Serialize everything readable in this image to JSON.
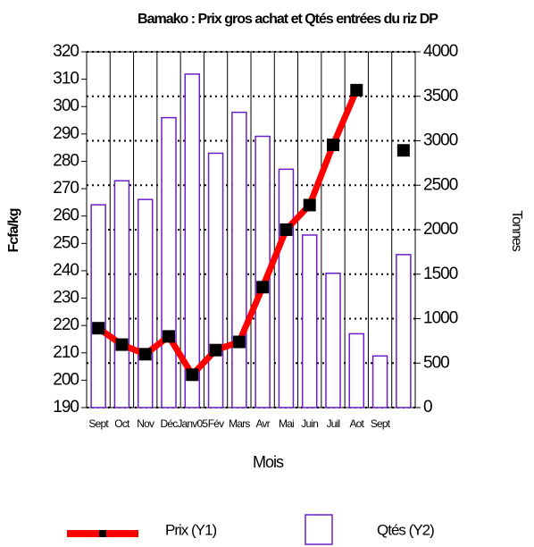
{
  "chart_data": {
    "type": "bar_line",
    "title": "Bamako : Prix  gros achat et Qtés entrées  du riz DP",
    "x_label": "Mois",
    "y_label": "Fcfa/kg",
    "y2_label": "Tonnes",
    "categories": [
      "Sept",
      "Oct",
      "Nov",
      "Déc",
      "Janv05",
      "Fév",
      "Mars",
      "Avr",
      "Mai",
      "Juin",
      "Juil",
      "Aot",
      "Sept",
      null
    ],
    "series": [
      {
        "name": "Prix (Y1)",
        "type": "line",
        "color": "#ff0000",
        "marker_color": "#000000",
        "values": [
          219,
          213,
          209.5,
          216,
          202,
          211,
          214,
          234,
          255,
          264,
          286,
          306,
          null,
          284
        ]
      },
      {
        "name": "Qtés (Y2)",
        "type": "bar",
        "axis": "y2",
        "color": "#6a1fc8",
        "values": [
          2280,
          2550,
          2340,
          3260,
          3750,
          2860,
          3320,
          3050,
          2680,
          1940,
          1510,
          830,
          580,
          1720
        ]
      }
    ],
    "ylim": [
      190,
      320
    ],
    "yticks": [
      190,
      200,
      210,
      220,
      230,
      240,
      250,
      260,
      270,
      280,
      290,
      300,
      310,
      320
    ],
    "y2lim": [
      0,
      4000
    ],
    "y2ticks": [
      0,
      500,
      1000,
      1500,
      2000,
      2500,
      3000,
      3500,
      4000
    ],
    "grid": true,
    "legend": "bottom"
  }
}
